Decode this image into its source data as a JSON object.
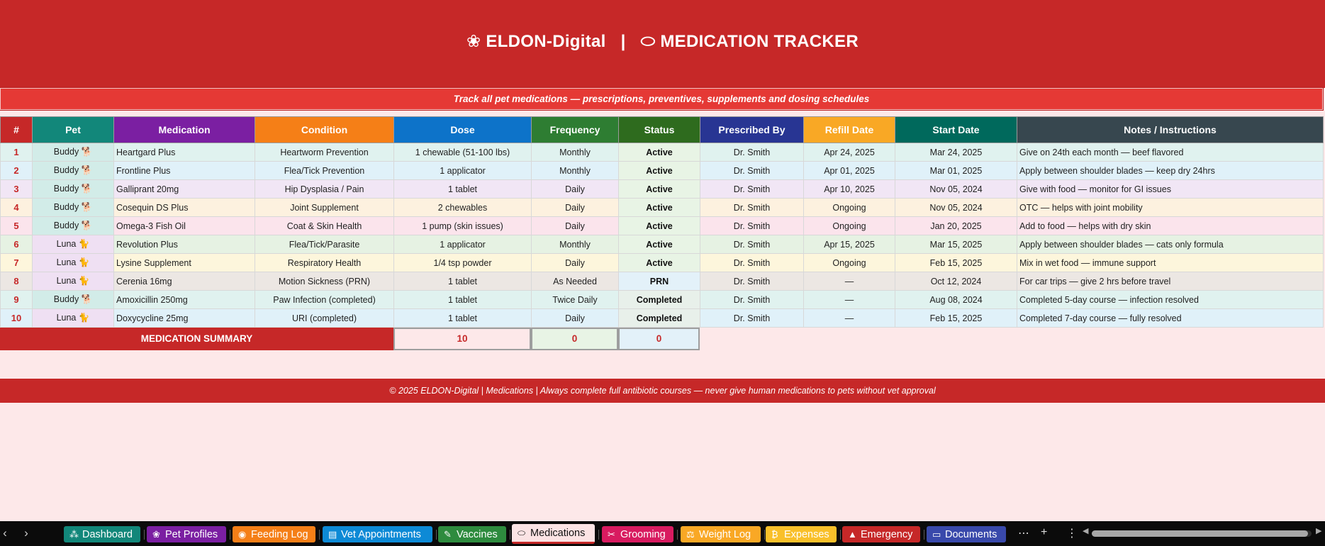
{
  "title": {
    "brand": "ELDON-Digital",
    "separator": "|",
    "page": "MEDICATION TRACKER"
  },
  "subtitle": "Track all pet medications — prescriptions, preventives, supplements and dosing schedules",
  "columns": [
    {
      "label": "#",
      "color": "#c62828"
    },
    {
      "label": "Pet",
      "color": "#12877a"
    },
    {
      "label": "Medication",
      "color": "#7b1fa2"
    },
    {
      "label": "Condition",
      "color": "#f57f17"
    },
    {
      "label": "Dose",
      "color": "#0d73c9"
    },
    {
      "label": "Frequency",
      "color": "#2e7d32"
    },
    {
      "label": "Status",
      "color": "#2e6b1e"
    },
    {
      "label": "Prescribed By",
      "color": "#283593"
    },
    {
      "label": "Refill Date",
      "color": "#f9a825"
    },
    {
      "label": "Start Date",
      "color": "#00695c"
    },
    {
      "label": "Notes / Instructions",
      "color": "#37474f"
    }
  ],
  "rows": [
    {
      "num": "1",
      "pet": "Buddy 🐕",
      "medication": "Heartgard Plus",
      "condition": "Heartworm Prevention",
      "dose": "1 chewable (51-100 lbs)",
      "frequency": "Monthly",
      "status": "Active",
      "prescribed_by": "Dr. Smith",
      "refill_date": "Apr 24, 2025",
      "start_date": "Mar 24, 2025",
      "notes": "Give on 24th each month — beef flavored",
      "bg": "#e0f2ef",
      "pet_bg": "#d2ece8",
      "status_bg": "#e8f4e5"
    },
    {
      "num": "2",
      "pet": "Buddy 🐕",
      "medication": "Frontline Plus",
      "condition": "Flea/Tick Prevention",
      "dose": "1 applicator",
      "frequency": "Monthly",
      "status": "Active",
      "prescribed_by": "Dr. Smith",
      "refill_date": "Apr 01, 2025",
      "start_date": "Mar 01, 2025",
      "notes": "Apply between shoulder blades — keep dry 24hrs",
      "bg": "#e0f1f9",
      "pet_bg": "#d2ece8",
      "status_bg": "#e8f4e5"
    },
    {
      "num": "3",
      "pet": "Buddy 🐕",
      "medication": "Galliprant 20mg",
      "condition": "Hip Dysplasia / Pain",
      "dose": "1 tablet",
      "frequency": "Daily",
      "status": "Active",
      "prescribed_by": "Dr. Smith",
      "refill_date": "Apr 10, 2025",
      "start_date": "Nov 05, 2024",
      "notes": "Give with food — monitor for GI issues",
      "bg": "#f1e6f5",
      "pet_bg": "#d2ece8",
      "status_bg": "#e8f4e5"
    },
    {
      "num": "4",
      "pet": "Buddy 🐕",
      "medication": "Cosequin DS Plus",
      "condition": "Joint Supplement",
      "dose": "2 chewables",
      "frequency": "Daily",
      "status": "Active",
      "prescribed_by": "Dr. Smith",
      "refill_date": "Ongoing",
      "start_date": "Nov 05, 2024",
      "notes": "OTC — helps with joint mobility",
      "bg": "#fdf1df",
      "pet_bg": "#d2ece8",
      "status_bg": "#e8f4e5"
    },
    {
      "num": "5",
      "pet": "Buddy 🐕",
      "medication": "Omega-3 Fish Oil",
      "condition": "Coat & Skin Health",
      "dose": "1 pump (skin issues)",
      "frequency": "Daily",
      "status": "Active",
      "prescribed_by": "Dr. Smith",
      "refill_date": "Ongoing",
      "start_date": "Jan 20, 2025",
      "notes": "Add to food — helps with dry skin",
      "bg": "#fbe4ec",
      "pet_bg": "#d2ece8",
      "status_bg": "#e8f4e5"
    },
    {
      "num": "6",
      "pet": "Luna 🐈",
      "medication": "Revolution Plus",
      "condition": "Flea/Tick/Parasite",
      "dose": "1 applicator",
      "frequency": "Monthly",
      "status": "Active",
      "prescribed_by": "Dr. Smith",
      "refill_date": "Apr 15, 2025",
      "start_date": "Mar 15, 2025",
      "notes": "Apply between shoulder blades — cats only formula",
      "bg": "#e6f2e3",
      "pet_bg": "#efe0f3",
      "status_bg": "#e8f4e5"
    },
    {
      "num": "7",
      "pet": "Luna 🐈",
      "medication": "Lysine Supplement",
      "condition": "Respiratory Health",
      "dose": "1/4 tsp powder",
      "frequency": "Daily",
      "status": "Active",
      "prescribed_by": "Dr. Smith",
      "refill_date": "Ongoing",
      "start_date": "Feb 15, 2025",
      "notes": "Mix in wet food — immune support",
      "bg": "#fdf6dc",
      "pet_bg": "#efe0f3",
      "status_bg": "#e8f4e5"
    },
    {
      "num": "8",
      "pet": "Luna 🐈",
      "medication": "Cerenia 16mg",
      "condition": "Motion Sickness (PRN)",
      "dose": "1 tablet",
      "frequency": "As Needed",
      "status": "PRN",
      "prescribed_by": "Dr. Smith",
      "refill_date": "—",
      "start_date": "Oct 12, 2024",
      "notes": "For car trips — give 2 hrs before travel",
      "bg": "#ece7e3",
      "pet_bg": "#efe0f3",
      "status_bg": "#e3f1f9"
    },
    {
      "num": "9",
      "pet": "Buddy 🐕",
      "medication": "Amoxicillin 250mg",
      "condition": "Paw Infection (completed)",
      "dose": "1 tablet",
      "frequency": "Twice Daily",
      "status": "Completed",
      "prescribed_by": "Dr. Smith",
      "refill_date": "—",
      "start_date": "Aug 08, 2024",
      "notes": "Completed 5-day course — infection resolved",
      "bg": "#e0f2ef",
      "pet_bg": "#d2ece8",
      "status_bg": "#e8f0ea"
    },
    {
      "num": "10",
      "pet": "Luna 🐈",
      "medication": "Doxycycline 25mg",
      "condition": "URI (completed)",
      "dose": "1 tablet",
      "frequency": "Daily",
      "status": "Completed",
      "prescribed_by": "Dr. Smith",
      "refill_date": "—",
      "start_date": "Feb 15, 2025",
      "notes": "Completed 7-day course — fully resolved",
      "bg": "#e0f1f9",
      "pet_bg": "#efe0f3",
      "status_bg": "#e8f0ea"
    }
  ],
  "summary": {
    "label": "MEDICATION SUMMARY",
    "total": "10",
    "value_2": "0",
    "value_3": "0"
  },
  "footer": "© 2025 ELDON-Digital | Medications | Always complete full antibiotic courses — never give human medications to pets without vet approval",
  "tabs": [
    {
      "label": "Dashboard",
      "icon": "dashboard-icon",
      "glyph": "⁂",
      "color": "#12877a"
    },
    {
      "label": "Pet Profiles",
      "icon": "paw-icon",
      "glyph": "❀",
      "color": "#7b1fa2"
    },
    {
      "label": "Feeding Log",
      "icon": "bowl-icon",
      "glyph": "◉",
      "color": "#f57f17"
    },
    {
      "label": "Vet Appointments",
      "icon": "clipboard-icon",
      "glyph": "▤",
      "color": "#0d8ad6"
    },
    {
      "label": "Vaccines",
      "icon": "syringe-icon",
      "glyph": "✎",
      "color": "#2e8b3e"
    },
    {
      "label": "Medications",
      "icon": "pill-icon",
      "glyph": "⬭",
      "color": "#fbe3e4",
      "active": true
    },
    {
      "label": "Grooming",
      "icon": "scissors-icon",
      "glyph": "✂",
      "color": "#d81b60"
    },
    {
      "label": "Weight Log",
      "icon": "scale-icon",
      "glyph": "⚖",
      "color": "#f9a825"
    },
    {
      "label": "Expenses",
      "icon": "money-bag-icon",
      "glyph": "₿",
      "color": "#f9c02a"
    },
    {
      "label": "Emergency",
      "icon": "siren-icon",
      "glyph": "▲",
      "color": "#c62828"
    },
    {
      "label": "Documents",
      "icon": "folder-icon",
      "glyph": "▭",
      "color": "#3949ab"
    }
  ]
}
